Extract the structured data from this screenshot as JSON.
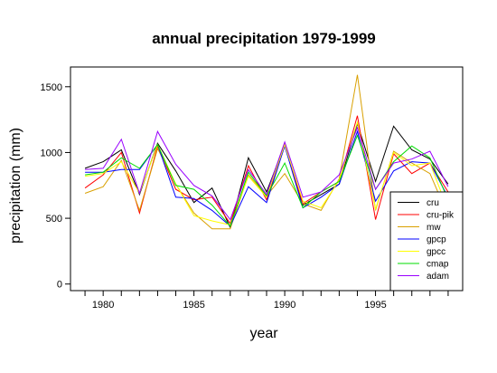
{
  "chart_data": {
    "type": "line",
    "title": "annual precipitation 1979-1999",
    "xlabel": "year",
    "ylabel": "precipitation (mm)",
    "x": [
      1979,
      1980,
      1981,
      1982,
      1983,
      1984,
      1985,
      1986,
      1987,
      1988,
      1989,
      1990,
      1991,
      1992,
      1993,
      1994,
      1995,
      1996,
      1997,
      1998,
      1999
    ],
    "xlim": [
      1978.2,
      1999.8
    ],
    "ylim": [
      -50,
      1650
    ],
    "xticks": [
      1980,
      1985,
      1990,
      1995
    ],
    "yticks": [
      0,
      500,
      1000,
      1500
    ],
    "grid": false,
    "legend_position": "bottom-right",
    "series": [
      {
        "name": "cru",
        "color": "#000000",
        "values": [
          880,
          930,
          1020,
          680,
          1070,
          860,
          620,
          730,
          430,
          960,
          700,
          1060,
          600,
          680,
          760,
          1220,
          780,
          1200,
          1020,
          950,
          760
        ]
      },
      {
        "name": "cru-pik",
        "color": "#ff0000",
        "values": [
          730,
          830,
          1000,
          540,
          1050,
          720,
          640,
          660,
          460,
          900,
          640,
          1060,
          610,
          700,
          780,
          1280,
          490,
          990,
          840,
          920,
          700
        ]
      },
      {
        "name": "mw",
        "color": "#d9a000",
        "values": [
          690,
          740,
          940,
          560,
          1030,
          760,
          540,
          420,
          420,
          830,
          670,
          840,
          610,
          560,
          800,
          1590,
          560,
          1010,
          920,
          840,
          520
        ]
      },
      {
        "name": "gpcp",
        "color": "#0000ff",
        "values": [
          850,
          850,
          870,
          870,
          1060,
          660,
          650,
          560,
          440,
          740,
          620,
          1050,
          580,
          660,
          760,
          1160,
          630,
          860,
          930,
          920,
          660
        ]
      },
      {
        "name": "gpcc",
        "color": "#ffff00",
        "values": [
          820,
          840,
          930,
          690,
          1060,
          760,
          520,
          480,
          450,
          820,
          660,
          1060,
          630,
          580,
          790,
          1230,
          570,
          1000,
          900,
          920,
          560
        ]
      },
      {
        "name": "cmap",
        "color": "#00dd00",
        "values": [
          830,
          850,
          960,
          880,
          1060,
          750,
          720,
          600,
          440,
          850,
          670,
          920,
          580,
          700,
          780,
          1130,
          720,
          930,
          1050,
          960,
          640
        ]
      },
      {
        "name": "adam",
        "color": "#9900ff",
        "values": [
          870,
          880,
          1100,
          690,
          1160,
          910,
          750,
          670,
          490,
          870,
          680,
          1080,
          660,
          700,
          830,
          1190,
          720,
          920,
          950,
          1010,
          740
        ]
      }
    ]
  }
}
